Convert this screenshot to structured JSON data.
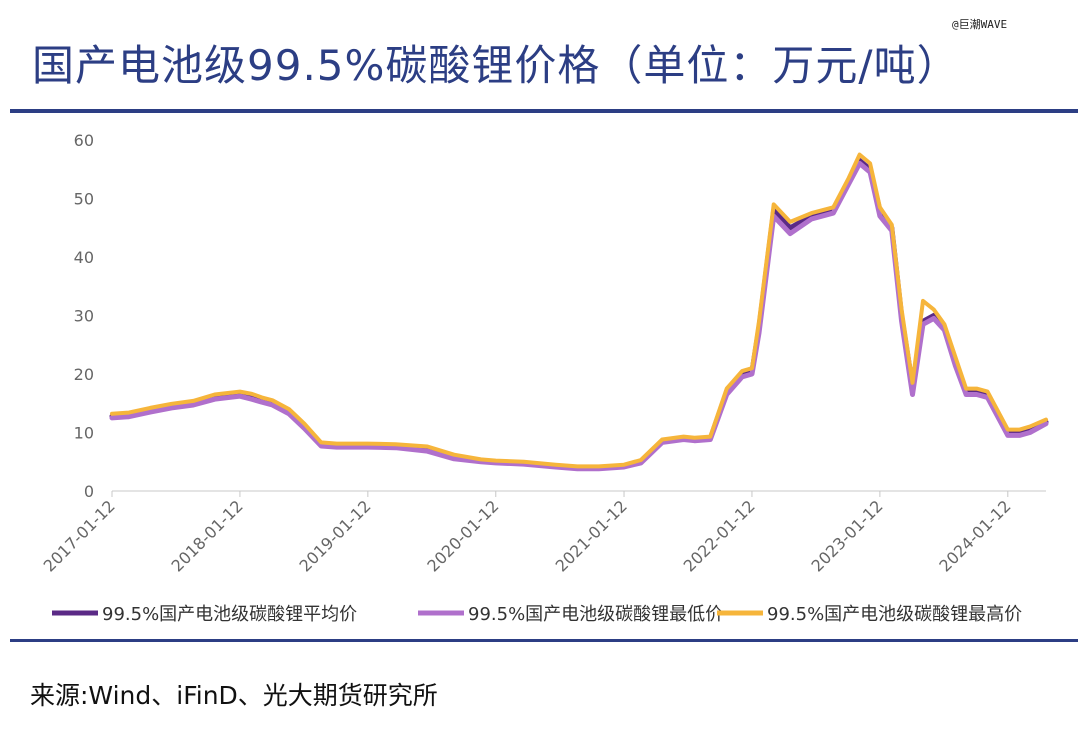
{
  "title": "国产电池级99.5%碳酸锂价格（单位：万元/吨）",
  "watermark": "@巨潮WAVE",
  "source": "来源:Wind、iFinD、光大期货研究所",
  "colors": {
    "title": "#2c3e84",
    "avg": "#5b2a86",
    "min": "#b070cc",
    "max": "#f6b53b"
  },
  "chart_data": {
    "type": "line",
    "y_ticks": [
      0,
      10,
      20,
      30,
      40,
      50,
      60
    ],
    "ylim": [
      0,
      60
    ],
    "x_tick_labels": [
      "2017-01-12",
      "2018-01-12",
      "2019-01-12",
      "2020-01-12",
      "2021-01-12",
      "2022-01-12",
      "2023-01-12",
      "2024-01-12"
    ],
    "xlim": [
      "2017-01-12",
      "2024-04-30"
    ],
    "legend_position": "bottom",
    "x": [
      "2017-01-12",
      "2017-03-01",
      "2017-05-01",
      "2017-07-01",
      "2017-09-01",
      "2017-11-01",
      "2018-01-12",
      "2018-02-15",
      "2018-03-15",
      "2018-04-15",
      "2018-06-01",
      "2018-07-15",
      "2018-09-01",
      "2018-10-15",
      "2019-01-12",
      "2019-04-01",
      "2019-07-01",
      "2019-09-15",
      "2019-12-01",
      "2020-01-12",
      "2020-04-01",
      "2020-07-01",
      "2020-09-01",
      "2020-11-01",
      "2021-01-12",
      "2021-03-01",
      "2021-05-01",
      "2021-07-01",
      "2021-08-01",
      "2021-09-15",
      "2021-11-01",
      "2021-12-15",
      "2022-01-12",
      "2022-02-01",
      "2022-03-15",
      "2022-05-01",
      "2022-07-01",
      "2022-09-01",
      "2022-10-15",
      "2022-11-15",
      "2022-12-15",
      "2023-01-12",
      "2023-02-15",
      "2023-03-15",
      "2023-04-15",
      "2023-05-15",
      "2023-06-15",
      "2023-07-15",
      "2023-08-15",
      "2023-09-15",
      "2023-10-15",
      "2023-11-15",
      "2024-01-12",
      "2024-02-15",
      "2024-03-15",
      "2024-04-30"
    ],
    "series": [
      {
        "name": "99.5%国产电池级碳酸锂平均价",
        "values": [
          12.8,
          13.0,
          13.8,
          14.5,
          15.0,
          16.0,
          16.5,
          16.0,
          15.5,
          15.0,
          13.5,
          11.0,
          8.0,
          7.8,
          7.8,
          7.7,
          7.2,
          5.8,
          5.2,
          5.0,
          4.8,
          4.3,
          4.0,
          4.0,
          4.3,
          5.0,
          8.5,
          9.0,
          8.8,
          9.0,
          17.0,
          20.0,
          20.5,
          28.0,
          48.0,
          45.0,
          47.0,
          48.0,
          53.0,
          56.5,
          55.0,
          48.0,
          45.0,
          30.0,
          18.0,
          29.0,
          30.0,
          28.0,
          22.0,
          17.0,
          17.0,
          16.5,
          10.0,
          10.0,
          10.5,
          11.8
        ]
      },
      {
        "name": "99.5%国产电池级碳酸锂最低价",
        "values": [
          12.5,
          12.7,
          13.5,
          14.2,
          14.7,
          15.7,
          16.2,
          15.7,
          15.2,
          14.7,
          13.2,
          10.7,
          7.7,
          7.5,
          7.5,
          7.4,
          6.8,
          5.5,
          5.0,
          4.8,
          4.6,
          4.1,
          3.8,
          3.8,
          4.1,
          4.8,
          8.3,
          8.8,
          8.6,
          8.8,
          16.5,
          19.5,
          20.0,
          27.0,
          47.0,
          44.0,
          46.5,
          47.5,
          52.5,
          56.0,
          54.5,
          47.0,
          44.5,
          29.0,
          16.5,
          28.5,
          29.5,
          27.5,
          21.5,
          16.5,
          16.5,
          16.0,
          9.5,
          9.5,
          10.0,
          11.5
        ]
      },
      {
        "name": "99.5%国产电池级碳酸锂最高价",
        "values": [
          13.2,
          13.4,
          14.2,
          14.9,
          15.4,
          16.5,
          17.0,
          16.6,
          16.0,
          15.5,
          14.0,
          11.5,
          8.3,
          8.1,
          8.1,
          8.0,
          7.6,
          6.2,
          5.4,
          5.2,
          5.0,
          4.5,
          4.2,
          4.2,
          4.5,
          5.3,
          8.8,
          9.3,
          9.1,
          9.3,
          17.5,
          20.5,
          21.0,
          29.0,
          49.0,
          46.0,
          47.5,
          48.5,
          53.5,
          57.5,
          56.0,
          48.5,
          45.5,
          31.0,
          18.5,
          32.5,
          31.0,
          28.5,
          23.0,
          17.5,
          17.5,
          17.0,
          10.5,
          10.5,
          11.0,
          12.2
        ]
      }
    ]
  }
}
